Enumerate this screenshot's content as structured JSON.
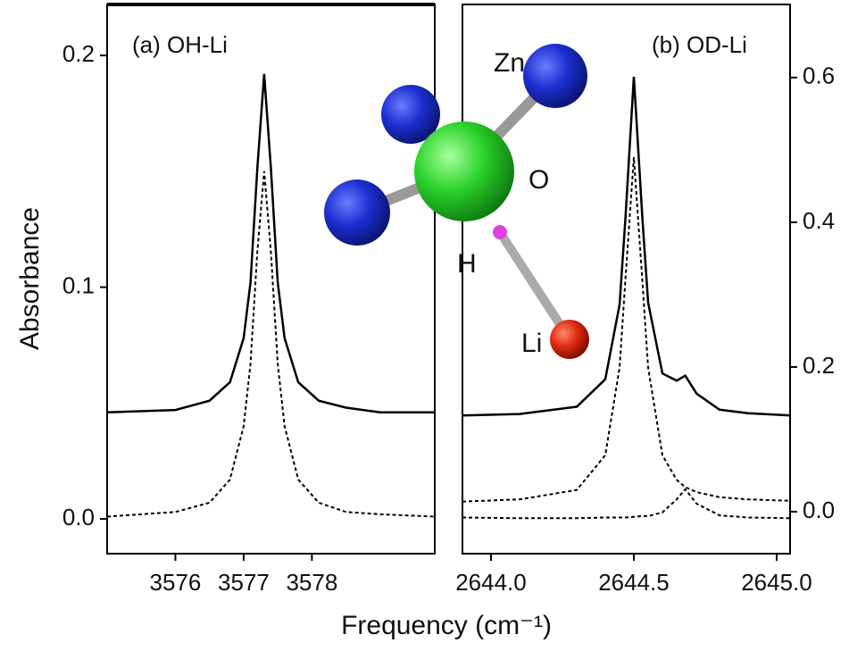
{
  "ylabel": "Absorbance",
  "xlabel": "Frequency (cm⁻¹)",
  "inset": {
    "labels": [
      "Zn",
      "O",
      "H",
      "Li"
    ]
  },
  "chart_data": [
    {
      "type": "line",
      "title": "(a) OH-Li",
      "x": [
        3575,
        3576,
        3576.5,
        3576.8,
        3577,
        3577.1,
        3577.2,
        3577.3,
        3577.4,
        3577.5,
        3577.6,
        3577.8,
        3578.1,
        3578.5,
        3579,
        3579.8
      ],
      "series": [
        {
          "color": "#000000",
          "style": "solid",
          "values": [
            0.046,
            0.047,
            0.051,
            0.059,
            0.078,
            0.102,
            0.151,
            0.192,
            0.151,
            0.102,
            0.078,
            0.059,
            0.051,
            0.048,
            0.046,
            0.046
          ]
        },
        {
          "color": "#000000",
          "style": "dotted",
          "values": [
            0.001,
            0.003,
            0.007,
            0.017,
            0.04,
            0.067,
            0.115,
            0.15,
            0.115,
            0.067,
            0.04,
            0.017,
            0.007,
            0.003,
            0.002,
            0.001
          ]
        }
      ],
      "xlim": [
        3575,
        3579.8
      ],
      "ylim": [
        -0.015,
        0.222
      ],
      "xticks": [
        3576,
        3577,
        3578
      ],
      "yticks": [
        {
          "value": 0,
          "label": "0.0"
        },
        0.1,
        0.2
      ]
    },
    {
      "type": "line",
      "title": "(b) OD-Li",
      "x": [
        2643.9,
        2644.1,
        2644.3,
        2644.4,
        2644.45,
        2644.47,
        2644.5,
        2644.53,
        2644.55,
        2644.6,
        2644.65,
        2644.68,
        2644.72,
        2644.8,
        2644.9,
        2645.05
      ],
      "series": [
        {
          "color": "#000000",
          "style": "solid",
          "axis": "y2",
          "values": [
            0.133,
            0.135,
            0.145,
            0.183,
            0.286,
            0.402,
            0.601,
            0.405,
            0.289,
            0.191,
            0.181,
            0.188,
            0.163,
            0.141,
            0.136,
            0.133
          ]
        },
        {
          "color": "#000000",
          "style": "dotted",
          "axis": "y2",
          "values": [
            0.014,
            0.017,
            0.03,
            0.078,
            0.199,
            0.318,
            0.49,
            0.318,
            0.199,
            0.078,
            0.044,
            0.034,
            0.027,
            0.02,
            0.017,
            0.015
          ]
        },
        {
          "color": "#000000",
          "style": "dotted",
          "axis": "y2",
          "values": [
            -0.008,
            -0.009,
            -0.009,
            -0.008,
            -0.008,
            -0.008,
            -0.007,
            -0.006,
            -0.006,
            -0.001,
            0.017,
            0.031,
            0.011,
            -0.005,
            -0.008,
            -0.009
          ]
        }
      ],
      "xlim": [
        2643.9,
        2645.047
      ],
      "y2lim": [
        -0.058,
        0.701
      ],
      "xticks": [
        {
          "value": 2644,
          "label": "2644.0"
        },
        2644.5,
        {
          "value": 2645,
          "label": "2645.0"
        }
      ],
      "y2ticks": [
        {
          "value": 0,
          "label": "0.0"
        },
        0.2,
        0.4,
        0.6
      ]
    }
  ]
}
